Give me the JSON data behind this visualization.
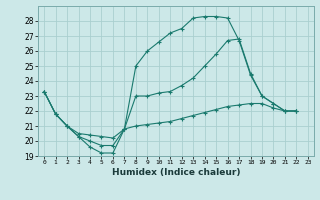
{
  "xlabel": "Humidex (Indice chaleur)",
  "bg_color": "#cce8e8",
  "grid_color": "#aacfcf",
  "line_color": "#1a7a6e",
  "xlim": [
    -0.5,
    23.5
  ],
  "ylim": [
    19,
    29
  ],
  "xticks": [
    0,
    1,
    2,
    3,
    4,
    5,
    6,
    7,
    8,
    9,
    10,
    11,
    12,
    13,
    14,
    15,
    16,
    17,
    18,
    19,
    20,
    21,
    22,
    23
  ],
  "yticks": [
    19,
    20,
    21,
    22,
    23,
    24,
    25,
    26,
    27,
    28
  ],
  "series": [
    {
      "x": [
        0,
        1,
        2,
        3,
        4,
        5,
        6,
        7,
        8,
        9,
        10,
        11,
        12,
        13,
        14,
        15,
        16,
        17,
        18,
        19,
        20,
        21,
        22
      ],
      "y": [
        23.3,
        21.8,
        21.0,
        20.3,
        19.6,
        19.2,
        19.2,
        20.8,
        25.0,
        26.0,
        26.6,
        27.2,
        27.5,
        28.2,
        28.3,
        28.3,
        28.2,
        26.7,
        24.4,
        23.0,
        22.5,
        22.0,
        22.0
      ]
    },
    {
      "x": [
        0,
        1,
        2,
        3,
        4,
        5,
        6,
        7,
        8,
        9,
        10,
        11,
        12,
        13,
        14,
        15,
        16,
        17,
        18,
        19,
        20,
        21,
        22
      ],
      "y": [
        23.3,
        21.8,
        21.0,
        20.3,
        20.0,
        19.7,
        19.7,
        20.8,
        23.0,
        23.0,
        23.2,
        23.3,
        23.7,
        24.2,
        25.0,
        25.8,
        26.7,
        26.8,
        24.5,
        23.0,
        22.5,
        22.0,
        22.0
      ]
    },
    {
      "x": [
        0,
        1,
        2,
        3,
        4,
        5,
        6,
        7,
        8,
        9,
        10,
        11,
        12,
        13,
        14,
        15,
        16,
        17,
        18,
        19,
        20,
        21,
        22
      ],
      "y": [
        23.3,
        21.8,
        21.0,
        20.5,
        20.4,
        20.3,
        20.2,
        20.8,
        21.0,
        21.1,
        21.2,
        21.3,
        21.5,
        21.7,
        21.9,
        22.1,
        22.3,
        22.4,
        22.5,
        22.5,
        22.2,
        22.0,
        22.0
      ]
    }
  ]
}
